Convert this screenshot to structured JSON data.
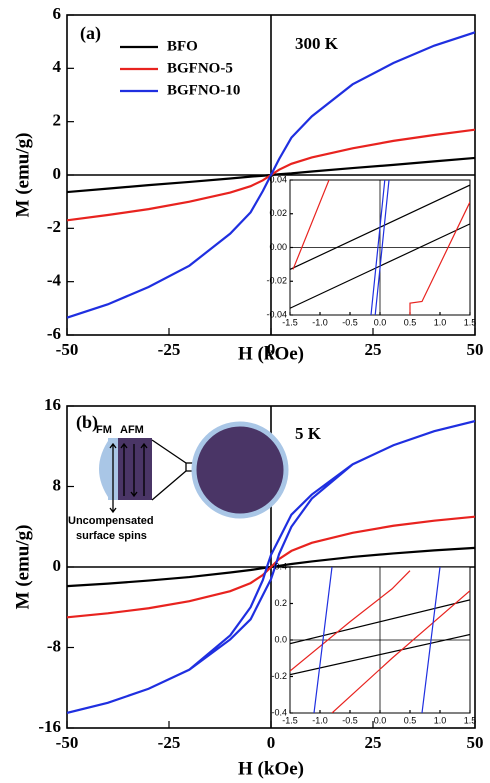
{
  "chart_data": [
    {
      "type": "line",
      "xlabel": "H (kOe)",
      "ylabel": "M (emu/g)",
      "annotations": [
        "(a)",
        "300 K"
      ],
      "xlim": [
        -50,
        50
      ],
      "ylim": [
        -6,
        6
      ],
      "xticks": [
        -50,
        -25,
        0,
        25,
        50
      ],
      "yticks": [
        -6,
        -4,
        -2,
        0,
        2,
        4,
        6
      ],
      "series": [
        {
          "name": "BFO",
          "color": "#000000",
          "x": [
            -50,
            -40,
            -30,
            -20,
            -10,
            -5,
            -2,
            0,
            2,
            5,
            10,
            20,
            30,
            40,
            50
          ],
          "values": [
            -0.64,
            -0.51,
            -0.38,
            -0.26,
            -0.13,
            -0.06,
            -0.03,
            0,
            0.03,
            0.06,
            0.13,
            0.26,
            0.38,
            0.51,
            0.64
          ]
        },
        {
          "name": "BGFNO-5",
          "color": "#e8231f",
          "x": [
            -50,
            -40,
            -30,
            -20,
            -10,
            -5,
            -2,
            0,
            2,
            5,
            10,
            20,
            30,
            40,
            50
          ],
          "values": [
            -1.7,
            -1.5,
            -1.28,
            -1.0,
            -0.66,
            -0.42,
            -0.2,
            0,
            0.2,
            0.42,
            0.66,
            1.0,
            1.28,
            1.5,
            1.7
          ]
        },
        {
          "name": "BGFNO-10",
          "color": "#1f2fe0",
          "x": [
            -50,
            -40,
            -30,
            -20,
            -10,
            -5,
            -2,
            0,
            2,
            5,
            10,
            20,
            30,
            40,
            50
          ],
          "values": [
            -5.35,
            -4.85,
            -4.2,
            -3.4,
            -2.2,
            -1.4,
            -0.6,
            0,
            0.6,
            1.4,
            2.2,
            3.4,
            4.2,
            4.85,
            5.35
          ]
        }
      ]
    },
    {
      "type": "line",
      "xlim": [
        -1.5,
        1.5
      ],
      "ylim": [
        -0.04,
        0.04
      ],
      "xticks": [
        -1.5,
        {
          "value": -1,
          "label": "-1.0"
        },
        -0.5,
        {
          "value": 0,
          "label": "0.0"
        },
        0.5,
        {
          "value": 1,
          "label": "1.0"
        },
        1.5
      ],
      "yticks": [
        -0.04,
        -0.02,
        {
          "value": 0,
          "label": "0.00"
        },
        0.02,
        0.04
      ],
      "series": [
        {
          "color": "#000000",
          "x": [
            -1.5,
            1.5,
            1.5,
            -1.5
          ],
          "values": [
            -0.036,
            0.014,
            0.037,
            -0.013
          ]
        },
        {
          "color": "#e8231f",
          "x": [
            -1.45,
            -0.85,
            null,
            0.5,
            0.5,
            0.7,
            1.5
          ],
          "values": [
            -0.013,
            0.04,
            null,
            -0.04,
            -0.033,
            -0.032,
            0.027
          ]
        },
        {
          "color": "#1f2fe0",
          "x": [
            -0.15,
            0.08,
            null,
            -0.08,
            0.15
          ],
          "values": [
            -0.04,
            0.04,
            null,
            -0.04,
            0.04
          ]
        }
      ]
    },
    {
      "type": "line",
      "xlabel": "H (kOe)",
      "ylabel": "M (emu/g)",
      "annotations": [
        "(b)",
        "5 K",
        "FM",
        "AFM",
        "Uncompensated",
        "surface spins"
      ],
      "xlim": [
        -50,
        50
      ],
      "ylim": [
        -16,
        16
      ],
      "xticks": [
        -50,
        -25,
        0,
        25,
        50
      ],
      "yticks": [
        -16,
        -8,
        0,
        8,
        16
      ],
      "series": [
        {
          "name": "BFO",
          "color": "#000000",
          "x": [
            -50,
            -40,
            -30,
            -20,
            -10,
            -5,
            -2,
            0,
            2,
            5,
            10,
            20,
            30,
            40,
            50
          ],
          "values": [
            -1.9,
            -1.65,
            -1.35,
            -1.0,
            -0.55,
            -0.3,
            -0.12,
            0,
            0.12,
            0.3,
            0.55,
            1.0,
            1.35,
            1.65,
            1.9
          ]
        },
        {
          "name": "BGFNO-5",
          "color": "#e8231f",
          "x": [
            -50,
            -40,
            -30,
            -20,
            -10,
            -5,
            -2,
            0,
            2,
            5,
            10,
            20,
            30,
            40,
            50
          ],
          "values": [
            -5,
            -4.6,
            -4.1,
            -3.4,
            -2.4,
            -1.6,
            -0.8,
            0,
            0.8,
            1.6,
            2.4,
            3.4,
            4.1,
            4.6,
            5
          ]
        },
        {
          "name": "BGFNO-10",
          "color": "#1f2fe0",
          "x": [
            50,
            40,
            30,
            20,
            10,
            5,
            2,
            0,
            -1,
            -2,
            -5,
            -10,
            -20,
            -30,
            -40,
            -50,
            -40,
            -30,
            -20,
            -10,
            -5,
            -2,
            0,
            1,
            2,
            5,
            10,
            20,
            30,
            40,
            50
          ],
          "values": [
            14.5,
            13.5,
            12.1,
            10.2,
            7.2,
            5.2,
            2.8,
            1.2,
            0,
            -1.3,
            -4.0,
            -6.8,
            -10.2,
            -12.1,
            -13.5,
            -14.5,
            -13.5,
            -12.1,
            -10.2,
            -7.2,
            -5.2,
            -2.8,
            -1.2,
            0,
            1.3,
            4.0,
            6.8,
            10.2,
            12.1,
            13.5,
            14.5
          ]
        }
      ]
    },
    {
      "type": "line",
      "xlim": [
        -1.5,
        1.5
      ],
      "ylim": [
        -0.4,
        0.4
      ],
      "xticks": [
        -1.5,
        {
          "value": -1,
          "label": "-1.0"
        },
        -0.5,
        {
          "value": 0,
          "label": "0.0"
        },
        0.5,
        {
          "value": 1,
          "label": "1.0"
        },
        1.5
      ],
      "yticks": [
        -0.4,
        -0.2,
        {
          "value": 0,
          "label": "0.0"
        },
        0.2,
        0.4
      ],
      "series": [
        {
          "color": "#000000",
          "x": [
            -1.5,
            1.5,
            null,
            -1.5,
            1.5
          ],
          "values": [
            -0.19,
            0.03,
            null,
            -0.02,
            0.22
          ]
        },
        {
          "color": "#e8231f",
          "x": [
            -1.5,
            -0.5,
            0.2,
            0.5,
            null,
            -0.8,
            0.2,
            1.5
          ],
          "values": [
            -0.17,
            0.1,
            0.28,
            0.38,
            null,
            -0.4,
            -0.1,
            0.27
          ]
        },
        {
          "color": "#1f2fe0",
          "x": [
            -1.1,
            -0.8,
            null,
            0.7,
            1.0
          ],
          "values": [
            -0.4,
            0.4,
            null,
            -0.4,
            0.4
          ]
        }
      ]
    }
  ]
}
